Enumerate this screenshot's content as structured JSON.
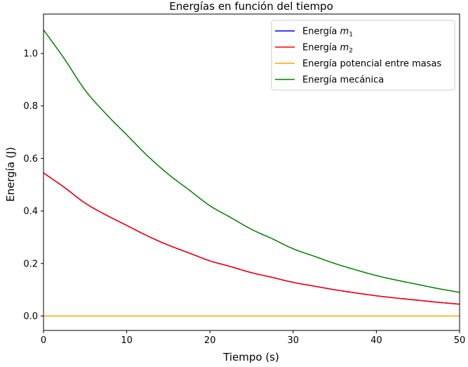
{
  "chart_data": {
    "type": "line",
    "title": "Energías en función del tiempo",
    "xlabel": "Tiempo (s)",
    "ylabel": "Energía (J)",
    "xlim": [
      0,
      50
    ],
    "ylim": [
      -0.055,
      1.15
    ],
    "xticks": [
      0,
      10,
      20,
      30,
      40,
      50
    ],
    "yticks": [
      0.0,
      0.2,
      0.4,
      0.6,
      0.8,
      1.0
    ],
    "ytick_labels": [
      "0.0",
      "0.2",
      "0.4",
      "0.6",
      "0.8",
      "1.0"
    ],
    "grid": false,
    "legend_position": "top-right",
    "x": [
      0,
      2.5,
      5,
      7.5,
      10,
      12.5,
      15,
      17.5,
      20,
      22.5,
      25,
      27.5,
      30,
      32.5,
      35,
      37.5,
      40,
      42.5,
      45,
      47.5,
      50
    ],
    "series": [
      {
        "name": "Energía ",
        "name_base": "m",
        "name_sub": "1",
        "color": "#0000ff",
        "values": [
          0.545,
          0.49,
          0.43,
          0.385,
          0.345,
          0.305,
          0.27,
          0.24,
          0.21,
          0.188,
          0.165,
          0.147,
          0.128,
          0.114,
          0.1,
          0.088,
          0.077,
          0.068,
          0.06,
          0.052,
          0.045
        ]
      },
      {
        "name": "Energía ",
        "name_base": "m",
        "name_sub": "2",
        "color": "#ff0000",
        "values": [
          0.545,
          0.49,
          0.43,
          0.385,
          0.345,
          0.305,
          0.27,
          0.24,
          0.21,
          0.188,
          0.165,
          0.147,
          0.128,
          0.114,
          0.1,
          0.088,
          0.077,
          0.068,
          0.06,
          0.052,
          0.045
        ]
      },
      {
        "name": "Energía potencial entre masas",
        "color": "#ffa500",
        "values": [
          0,
          0,
          0,
          0,
          0,
          0,
          0,
          0,
          0,
          0,
          0,
          0,
          0,
          0,
          0,
          0,
          0,
          0,
          0,
          0,
          0
        ]
      },
      {
        "name": "Energía mecánica",
        "color": "#008000",
        "values": [
          1.09,
          0.98,
          0.86,
          0.77,
          0.69,
          0.61,
          0.54,
          0.48,
          0.42,
          0.375,
          0.33,
          0.294,
          0.256,
          0.228,
          0.2,
          0.176,
          0.154,
          0.136,
          0.12,
          0.104,
          0.09
        ]
      }
    ]
  }
}
